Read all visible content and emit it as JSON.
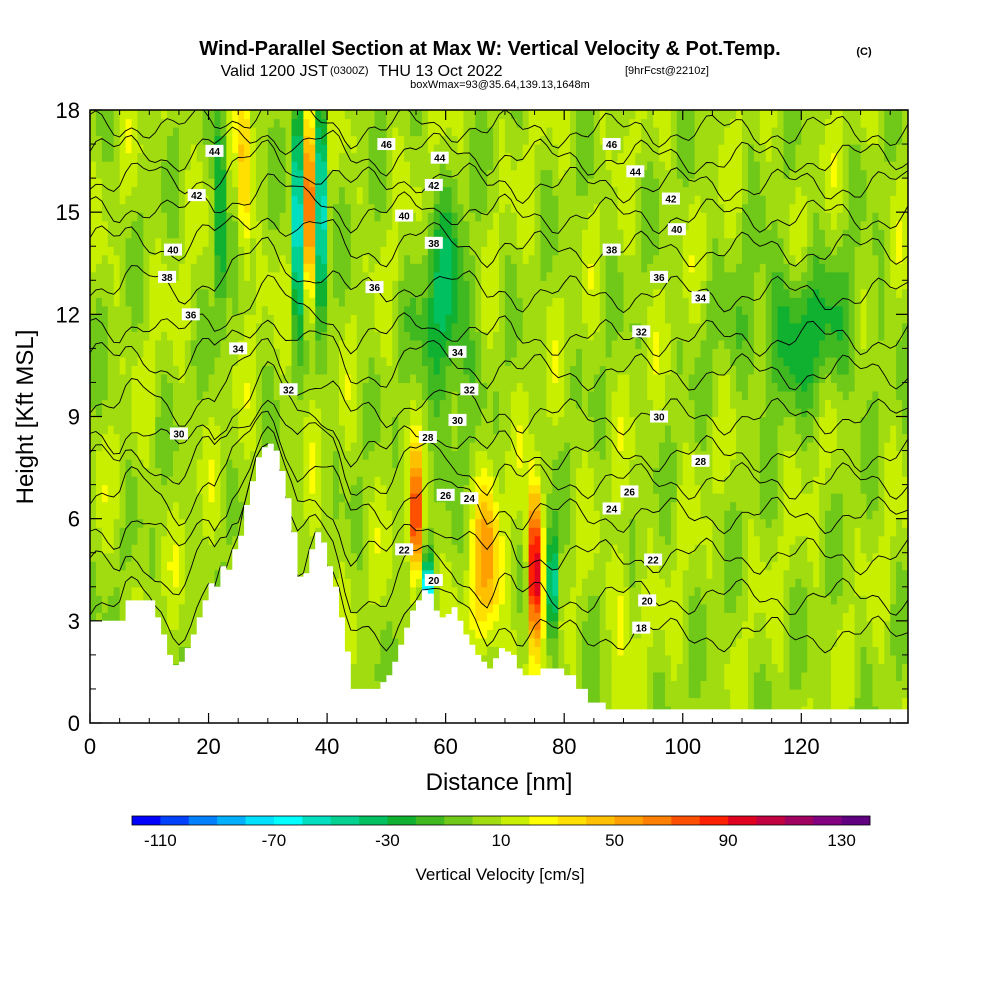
{
  "header": {
    "title": "Wind-Parallel Section at Max W: Vertical Velocity & Pot.Temp.",
    "copyright": "(C)",
    "valid_a": "Valid 1200 JST",
    "valid_b": "(0300Z)",
    "valid_c": "THU 13 Oct 2022",
    "valid_d": "[9hrFcst@2210z]",
    "boxwmax": "boxWmax=93@35.64,139.13,1648m"
  },
  "chart_data": {
    "type": "heatmap",
    "xlabel": "Distance [nm]",
    "ylabel": "Height [Kft MSL]",
    "xlim": [
      0,
      138
    ],
    "ylim": [
      0,
      18
    ],
    "x_ticks": [
      0,
      20,
      40,
      60,
      80,
      100,
      120
    ],
    "y_ticks": [
      0,
      3,
      6,
      9,
      12,
      15,
      18
    ],
    "colorbar": {
      "label": "Vertical Velocity [cm/s]",
      "tick_labels": [
        "-110",
        "-70",
        "-30",
        "10",
        "50",
        "90",
        "130"
      ],
      "tick_values": [
        -110,
        -70,
        -30,
        10,
        50,
        90,
        130
      ],
      "levels": [
        -120,
        -110,
        -100,
        -90,
        -80,
        -70,
        -60,
        -50,
        -40,
        -30,
        -20,
        -10,
        0,
        10,
        20,
        30,
        40,
        50,
        60,
        70,
        80,
        90,
        100,
        110,
        120,
        130,
        140
      ],
      "colors": [
        "#0000ff",
        "#0040ff",
        "#0080ff",
        "#00b0ff",
        "#00e0ff",
        "#00ffff",
        "#00e0c0",
        "#00d090",
        "#00c060",
        "#10b030",
        "#40b820",
        "#70c818",
        "#a0dc10",
        "#c8ee00",
        "#ffff00",
        "#ffe000",
        "#ffc000",
        "#ffa000",
        "#ff8000",
        "#ff5000",
        "#ff2000",
        "#e00020",
        "#c00040",
        "#a00060",
        "#800080",
        "#600080"
      ]
    },
    "terrain_kft": [
      [
        0,
        3
      ],
      [
        5,
        3
      ],
      [
        6,
        3.6
      ],
      [
        10,
        3.6
      ],
      [
        11,
        3.1
      ],
      [
        12,
        2.6
      ],
      [
        13,
        2.0
      ],
      [
        14,
        1.7
      ],
      [
        15,
        1.8
      ],
      [
        16,
        2.2
      ],
      [
        17,
        2.6
      ],
      [
        18,
        3.1
      ],
      [
        19,
        3.6
      ],
      [
        20,
        4.1
      ],
      [
        21,
        4.0
      ],
      [
        22,
        4.6
      ],
      [
        23,
        4.5
      ],
      [
        24,
        5.1
      ],
      [
        25,
        5.5
      ],
      [
        26,
        6.4
      ],
      [
        27,
        7.1
      ],
      [
        28,
        7.8
      ],
      [
        29,
        8.1
      ],
      [
        30,
        8.2
      ],
      [
        31,
        8.0
      ],
      [
        32,
        7.4
      ],
      [
        33,
        6.6
      ],
      [
        34,
        5.6
      ],
      [
        35,
        4.3
      ],
      [
        36,
        4.4
      ],
      [
        37,
        5.1
      ],
      [
        38,
        5.6
      ],
      [
        39,
        5.3
      ],
      [
        40,
        4.6
      ],
      [
        41,
        4.0
      ],
      [
        42,
        3.1
      ],
      [
        43,
        2.1
      ],
      [
        44,
        1.0
      ],
      [
        48,
        1.0
      ],
      [
        49,
        1.2
      ],
      [
        50,
        1.4
      ],
      [
        51,
        1.8
      ],
      [
        52,
        2.3
      ],
      [
        53,
        2.8
      ],
      [
        54,
        3.3
      ],
      [
        55,
        3.6
      ],
      [
        56,
        3.9
      ],
      [
        57,
        3.8
      ],
      [
        58,
        3.3
      ],
      [
        59,
        3.1
      ],
      [
        60,
        3.2
      ],
      [
        61,
        3.4
      ],
      [
        62,
        3.0
      ],
      [
        63,
        2.6
      ],
      [
        64,
        2.3
      ],
      [
        65,
        2.0
      ],
      [
        66,
        1.8
      ],
      [
        67,
        1.6
      ],
      [
        68,
        1.9
      ],
      [
        69,
        2.2
      ],
      [
        70,
        2.1
      ],
      [
        71,
        2.0
      ],
      [
        72,
        1.6
      ],
      [
        73,
        1.4
      ],
      [
        76,
        1.6
      ],
      [
        78,
        1.6
      ],
      [
        80,
        1.4
      ],
      [
        82,
        1.0
      ],
      [
        84,
        0.6
      ],
      [
        87,
        0.4
      ],
      [
        138,
        0.4
      ]
    ],
    "w_maxima": [
      {
        "x": 37,
        "z": 15.5,
        "w": 80,
        "rx": 0.8,
        "rz": 3.2
      },
      {
        "x": 35,
        "z": 15.0,
        "w": -100,
        "rx": 0.8,
        "rz": 3.0
      },
      {
        "x": 39,
        "z": 15.0,
        "w": -95,
        "rx": 0.8,
        "rz": 3.0
      },
      {
        "x": 55,
        "z": 6.0,
        "w": 85,
        "rx": 1.0,
        "rz": 1.8
      },
      {
        "x": 57,
        "z": 3.8,
        "w": -100,
        "rx": 0.8,
        "rz": 1.0
      },
      {
        "x": 75,
        "z": 4.5,
        "w": 115,
        "rx": 1.1,
        "rz": 2.2
      },
      {
        "x": 78,
        "z": 4.0,
        "w": -80,
        "rx": 0.8,
        "rz": 1.6
      },
      {
        "x": 67,
        "z": 4.5,
        "w": 45,
        "rx": 2.5,
        "rz": 2.5
      },
      {
        "x": 90,
        "z": 3.5,
        "w": 22,
        "rx": 1.5,
        "rz": 2.0
      },
      {
        "x": 60,
        "z": 12,
        "w": -40,
        "rx": 4.0,
        "rz": 3.0
      },
      {
        "x": 26,
        "z": 16,
        "w": 40,
        "rx": 1.0,
        "rz": 3.0
      },
      {
        "x": 22,
        "z": 15,
        "w": -50,
        "rx": 1.0,
        "rz": 3.0
      },
      {
        "x": 120,
        "z": 11.5,
        "w": -30,
        "rx": 10,
        "rz": 2.0
      }
    ],
    "theta_contours": [
      {
        "level": 18,
        "base_kft": 2.6
      },
      {
        "level": 20,
        "base_kft": 3.7
      },
      {
        "level": 22,
        "base_kft": 4.9
      },
      {
        "level": 24,
        "base_kft": 6.1
      },
      {
        "level": 26,
        "base_kft": 7.1
      },
      {
        "level": 28,
        "base_kft": 7.9
      },
      {
        "level": 30,
        "base_kft": 9.0
      },
      {
        "level": 32,
        "base_kft": 10.3
      },
      {
        "level": 34,
        "base_kft": 11.3
      },
      {
        "level": 36,
        "base_kft": 12.6
      },
      {
        "level": 38,
        "base_kft": 13.9
      },
      {
        "level": 40,
        "base_kft": 14.9
      },
      {
        "level": 42,
        "base_kft": 15.8
      },
      {
        "level": 44,
        "base_kft": 16.6
      },
      {
        "level": 46,
        "base_kft": 17.4
      }
    ],
    "contour_labels": [
      {
        "text": "46",
        "x": 50,
        "z": 17.0
      },
      {
        "text": "44",
        "x": 21,
        "z": 16.8
      },
      {
        "text": "42",
        "x": 18,
        "z": 15.5
      },
      {
        "text": "40",
        "x": 14,
        "z": 13.9
      },
      {
        "text": "38",
        "x": 13,
        "z": 13.1
      },
      {
        "text": "36",
        "x": 17,
        "z": 12.0
      },
      {
        "text": "34",
        "x": 25,
        "z": 11.0
      },
      {
        "text": "32",
        "x": 33.5,
        "z": 9.8
      },
      {
        "text": "30",
        "x": 15,
        "z": 8.5
      },
      {
        "text": "44",
        "x": 59,
        "z": 16.6
      },
      {
        "text": "42",
        "x": 58,
        "z": 15.8
      },
      {
        "text": "40",
        "x": 53,
        "z": 14.9
      },
      {
        "text": "38",
        "x": 58,
        "z": 14.1
      },
      {
        "text": "36",
        "x": 48,
        "z": 12.8
      },
      {
        "text": "34",
        "x": 62,
        "z": 10.9
      },
      {
        "text": "32",
        "x": 64,
        "z": 9.8
      },
      {
        "text": "30",
        "x": 62,
        "z": 8.9
      },
      {
        "text": "28",
        "x": 57,
        "z": 8.4
      },
      {
        "text": "26",
        "x": 60,
        "z": 6.7
      },
      {
        "text": "24",
        "x": 64,
        "z": 6.6
      },
      {
        "text": "22",
        "x": 53,
        "z": 5.1
      },
      {
        "text": "20",
        "x": 58,
        "z": 4.2
      },
      {
        "text": "46",
        "x": 88,
        "z": 17.0
      },
      {
        "text": "44",
        "x": 92,
        "z": 16.2
      },
      {
        "text": "42",
        "x": 98,
        "z": 15.4
      },
      {
        "text": "40",
        "x": 99,
        "z": 14.5
      },
      {
        "text": "38",
        "x": 88,
        "z": 13.9
      },
      {
        "text": "36",
        "x": 96,
        "z": 13.1
      },
      {
        "text": "34",
        "x": 103,
        "z": 12.5
      },
      {
        "text": "32",
        "x": 93,
        "z": 11.5
      },
      {
        "text": "30",
        "x": 96,
        "z": 9.0
      },
      {
        "text": "28",
        "x": 103,
        "z": 7.7
      },
      {
        "text": "26",
        "x": 91,
        "z": 6.8
      },
      {
        "text": "24",
        "x": 88,
        "z": 6.3
      },
      {
        "text": "22",
        "x": 95,
        "z": 4.8
      },
      {
        "text": "20",
        "x": 94,
        "z": 3.6
      },
      {
        "text": "18",
        "x": 93,
        "z": 2.8
      }
    ]
  }
}
